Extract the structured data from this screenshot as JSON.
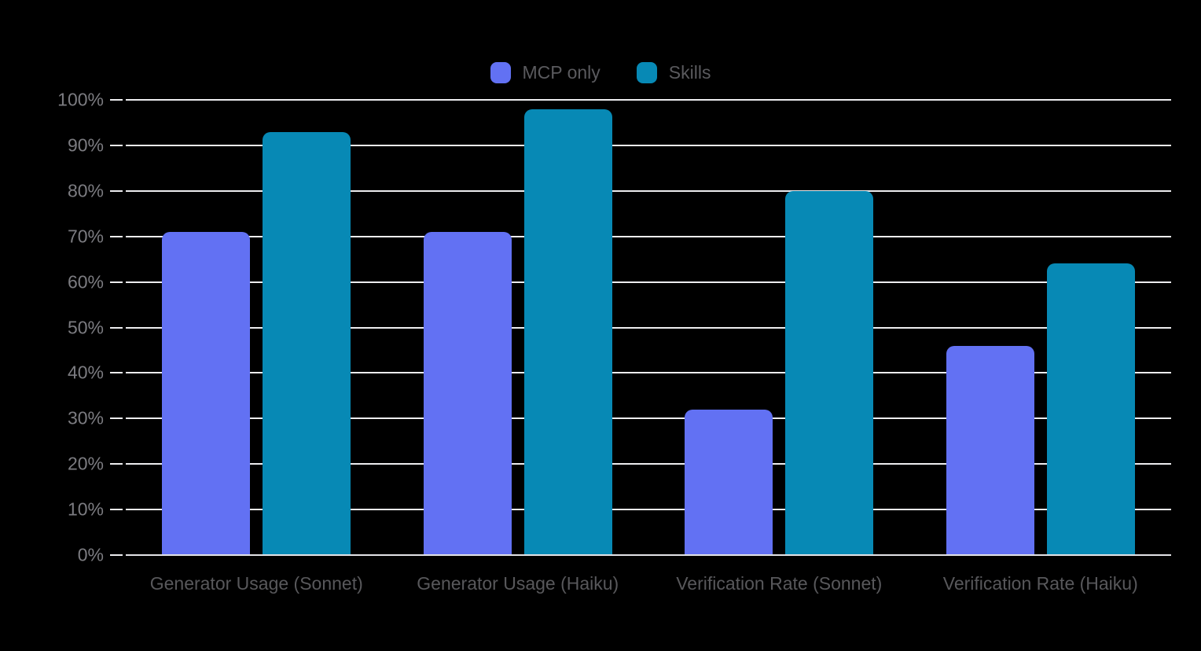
{
  "chart_data": {
    "type": "bar",
    "categories": [
      "Generator Usage (Sonnet)",
      "Generator Usage (Haiku)",
      "Verification Rate (Sonnet)",
      "Verification Rate (Haiku)"
    ],
    "series": [
      {
        "name": "MCP only",
        "color": "#6271f3",
        "values": [
          71,
          71,
          32,
          46
        ]
      },
      {
        "name": "Skills",
        "color": "#0789b5",
        "values": [
          93,
          98,
          80,
          64
        ]
      }
    ],
    "title": "",
    "xlabel": "",
    "ylabel": "",
    "y_ticks": [
      "0%",
      "10%",
      "20%",
      "30%",
      "40%",
      "50%",
      "60%",
      "70%",
      "80%",
      "90%",
      "100%"
    ],
    "ylim": [
      0,
      100
    ],
    "grid": true,
    "legend_position": "top-center",
    "colors": {
      "background": "#000000",
      "gridline": "#ededef",
      "baseline": "#e3e3e7",
      "tick_label": "#7c7c81",
      "category_label": "#58585b",
      "legend_label": "#5a5a5e"
    }
  }
}
